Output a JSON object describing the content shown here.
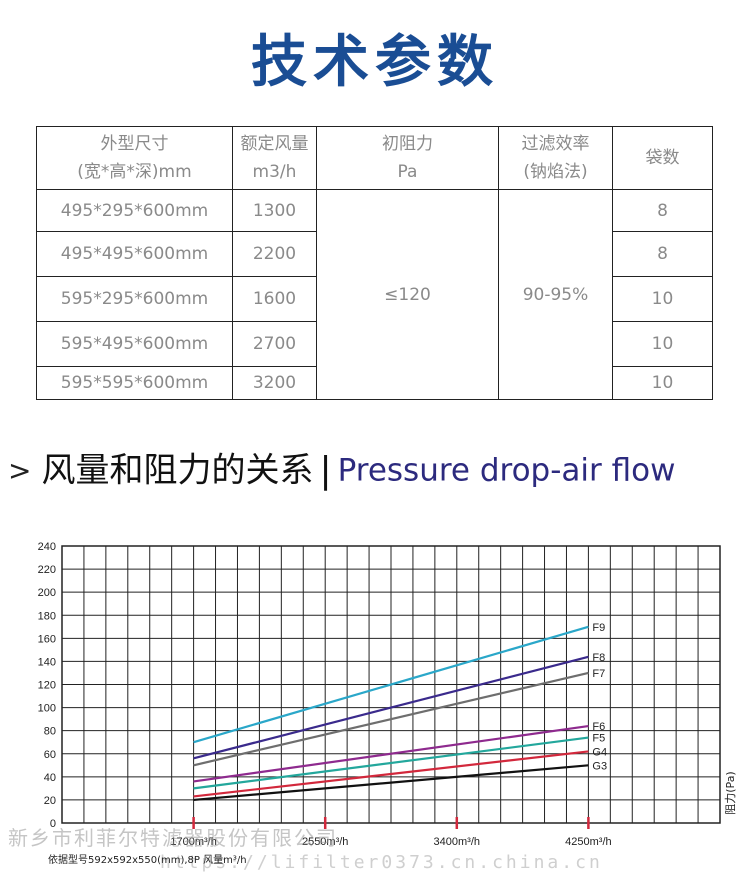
{
  "title": "技术参数",
  "table": {
    "headers": [
      {
        "line1": "外型尺寸",
        "line2": "(宽*高*深)mm"
      },
      {
        "line1": "额定风量",
        "line2": "m3/h"
      },
      {
        "line1": "初阻力",
        "line2": "Pa"
      },
      {
        "line1": "过滤效率",
        "line2": "(钠焰法)"
      },
      {
        "line1": "袋数",
        "line2": ""
      }
    ],
    "rows": [
      {
        "size": "495*295*600mm",
        "airflow": "1300",
        "bags": "8"
      },
      {
        "size": "495*495*600mm",
        "airflow": "2200",
        "bags": "8"
      },
      {
        "size": "595*295*600mm",
        "airflow": "1600",
        "bags": "10"
      },
      {
        "size": "595*495*600mm",
        "airflow": "2700",
        "bags": "10"
      },
      {
        "size": "595*595*600mm",
        "airflow": "3200",
        "bags": "10"
      }
    ],
    "resistance": "≤120",
    "efficiency": "90-95%"
  },
  "section": {
    "arrow": ">",
    "title_zh": "风量和阻力的关系",
    "separator": "|",
    "title_en": "Pressure drop-air flow"
  },
  "chart_data": {
    "type": "line",
    "ylabel": "阻力(Pa)",
    "ylim": [
      0,
      240
    ],
    "y_ticks": [
      0,
      20,
      40,
      60,
      80,
      100,
      120,
      140,
      160,
      180,
      200,
      220,
      240
    ],
    "x_ticks": [
      "1700m³/h",
      "2550m³/h",
      "3400m³/h",
      "4250m³/h"
    ],
    "x_tick_values": [
      1700,
      2550,
      3400,
      4250
    ],
    "xlim": [
      850,
      5100
    ],
    "series": [
      {
        "name": "F9",
        "color": "#2aa7c9",
        "x": [
          1700,
          4250
        ],
        "y": [
          70,
          170
        ]
      },
      {
        "name": "F8",
        "color": "#3a2a8c",
        "x": [
          1700,
          4250
        ],
        "y": [
          56,
          144
        ]
      },
      {
        "name": "F7",
        "color": "#6e6e6e",
        "x": [
          1700,
          4250
        ],
        "y": [
          50,
          130
        ]
      },
      {
        "name": "F6",
        "color": "#8e2a8e",
        "x": [
          1700,
          4250
        ],
        "y": [
          36,
          84
        ]
      },
      {
        "name": "F5",
        "color": "#23a79c",
        "x": [
          1700,
          4250
        ],
        "y": [
          30,
          74
        ]
      },
      {
        "name": "G4",
        "color": "#d2283c",
        "x": [
          1700,
          4250
        ],
        "y": [
          23,
          62
        ]
      },
      {
        "name": "G3",
        "color": "#111111",
        "x": [
          1700,
          4250
        ],
        "y": [
          20,
          50
        ]
      }
    ],
    "footnote": "依据型号592x592x550(mm),8P 风量m³/h"
  },
  "watermark": {
    "company": "新乡市利菲尔特滤器股份有限公司",
    "url": "https://lifilter0373.cn.china.cn"
  }
}
